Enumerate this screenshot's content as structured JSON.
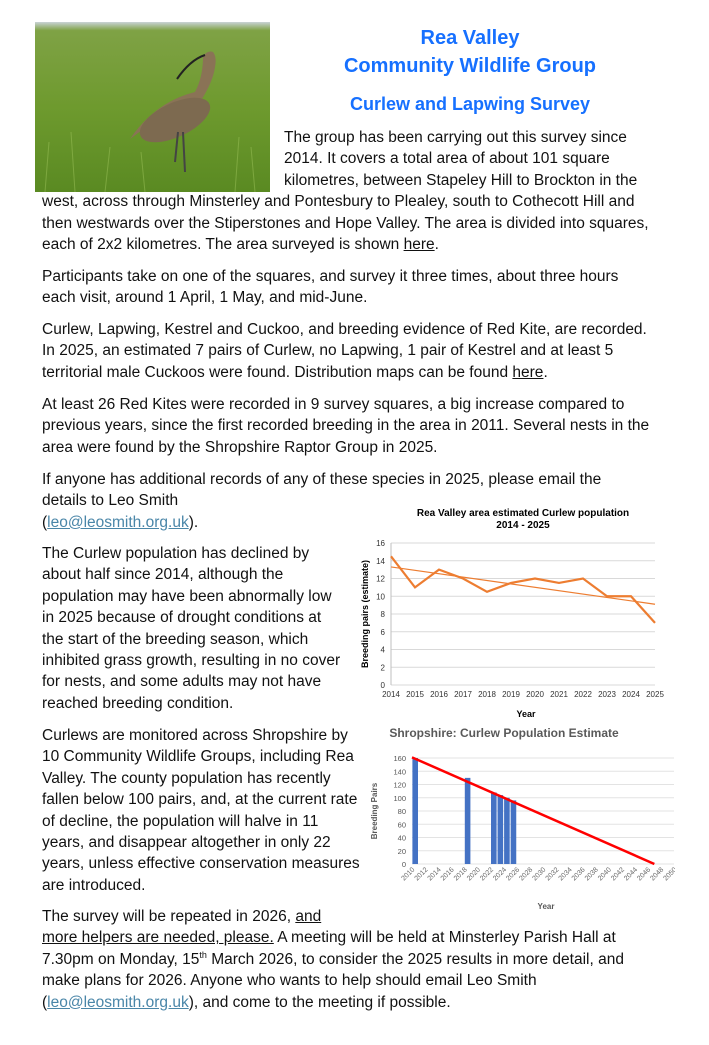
{
  "header": {
    "title_line1": "Rea Valley",
    "title_line2": "Community Wildlife Group",
    "subtitle": "Curlew and Lapwing Survey"
  },
  "photo": {
    "subject": "curlew-in-grass"
  },
  "paragraphs": {
    "p1": "The group has been carrying out this survey since 2014. It covers a total area of about 101 square kilometres, between Stapeley Hill to Brockton in the west, across through Minsterley and Pontesbury to Plealey, south to Cothecott Hill and then westwards over the Stiperstones and Hope Valley. The area is divided into squares, each of 2x2 kilometres. The area surveyed is shown ",
    "p1_link": "here",
    "p2": "Participants take on one of the squares, and survey it three times, about three hours each visit, around 1 April, 1 May, and mid-June.",
    "p3": "Curlew, Lapwing, Kestrel and Cuckoo, and breeding evidence of Red Kite, are recorded. In 2025, an estimated 7 pairs of Curlew, no Lapwing, 1 pair of Kestrel and at least 5 territorial male Cuckoos were found. Distribution maps can be found ",
    "p3_link": "here",
    "p4": "At least 26 Red Kites were recorded in 9 survey squares, a big increase compared to previous years, since the first recorded breeding in the area in 2011. Several nests in the area were found by the Shropshire Raptor Group in 2025.",
    "p5": "If anyone has additional records of any of these species in 2025, please email the details to Leo Smith",
    "email": "leo@leosmith.org.uk",
    "p6": "The Curlew population has declined by about half since 2014, although the population may have been abnormally low in 2025 because of drought conditions at the start of the breeding season, which inhibited grass growth, resulting in no cover for nests, and some adults may not have reached breeding condition.",
    "p7": "Curlews are monitored across Shropshire by 10 Community Wildlife Groups, including Rea Valley. The county population has recently fallen below 100 pairs, and, at the current rate of decline, the population will halve in 11 years, and disappear altogether in only 22 years, unless effective conservation measures are introduced.",
    "p8_start": "The survey will be repeated in 2026, ",
    "p8_link1": "and",
    "p8_link2": "more helpers are needed, please.",
    "p8_mid": " A meeting will be held at Minsterley Parish Hall at 7.30pm on Monday, 15",
    "p8_sup": "th",
    "p8_rest": " March 2026, to consider the 2025 results in more detail, and make plans for 2026. Anyone who wants to help should email Leo Smith",
    "p8_end": ", and come to the meeting if possible."
  },
  "chart_data": [
    {
      "type": "line",
      "title_line1": "Rea Valley area estimated Curlew population",
      "title_line2": "2014 - 2025",
      "xlabel": "Year",
      "ylabel": "Breeding pairs (estimate)",
      "ylim": [
        0,
        16
      ],
      "yticks": [
        0,
        2,
        4,
        6,
        8,
        10,
        12,
        14,
        16
      ],
      "x": [
        2014,
        2015,
        2016,
        2017,
        2018,
        2019,
        2020,
        2021,
        2022,
        2023,
        2024,
        2025
      ],
      "values": [
        14.5,
        11,
        13,
        12,
        10.5,
        11.5,
        12,
        11.5,
        12,
        10,
        10,
        7
      ],
      "trendline": {
        "x": [
          2014,
          2025
        ],
        "y": [
          13.3,
          9.1
        ]
      },
      "color": "#ed7d31",
      "grid": true
    },
    {
      "type": "bar",
      "title": "Shropshire: Curlew Population Estimate",
      "xlabel": "Year",
      "ylabel": "Breeding Pairs",
      "ylim": [
        0,
        160
      ],
      "yticks": [
        0,
        20,
        40,
        60,
        80,
        100,
        120,
        140,
        160
      ],
      "xlim": [
        2010,
        2050
      ],
      "x": [
        2010,
        2018,
        2022,
        2023,
        2024,
        2025
      ],
      "values": [
        160,
        130,
        108,
        104,
        100,
        96
      ],
      "trendline": {
        "x": [
          2010,
          2047
        ],
        "y": [
          161,
          0
        ]
      },
      "bar_color": "#4472c4",
      "trend_color": "#ff0000",
      "grid": true
    }
  ]
}
